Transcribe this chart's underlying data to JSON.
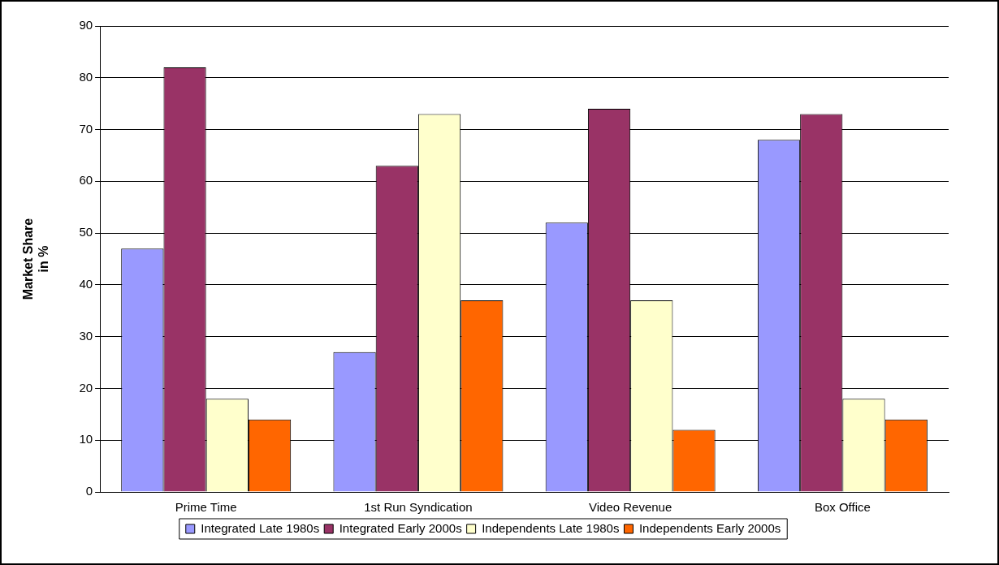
{
  "chart_data": {
    "type": "bar",
    "ylabel": "Market Share in %",
    "categories": [
      "Prime Time",
      "1st Run Syndication",
      "Video Revenue",
      "Box Office"
    ],
    "series": [
      {
        "name": "Integrated Late 1980s",
        "color": "#9999ff",
        "values": [
          47,
          27,
          52,
          68
        ]
      },
      {
        "name": "Integrated Early 2000s",
        "color": "#993366",
        "values": [
          82,
          63,
          74,
          73
        ]
      },
      {
        "name": "Independents Late 1980s",
        "color": "#ffffcc",
        "values": [
          18,
          73,
          37,
          18
        ]
      },
      {
        "name": "Independents Early 2000s",
        "color": "#ff6600",
        "values": [
          14,
          37,
          12,
          14
        ]
      }
    ],
    "ylim": [
      0,
      90
    ],
    "yticks": [
      0,
      10,
      20,
      30,
      40,
      50,
      60,
      70,
      80,
      90
    ],
    "grid": "y",
    "legend": "bottom"
  }
}
